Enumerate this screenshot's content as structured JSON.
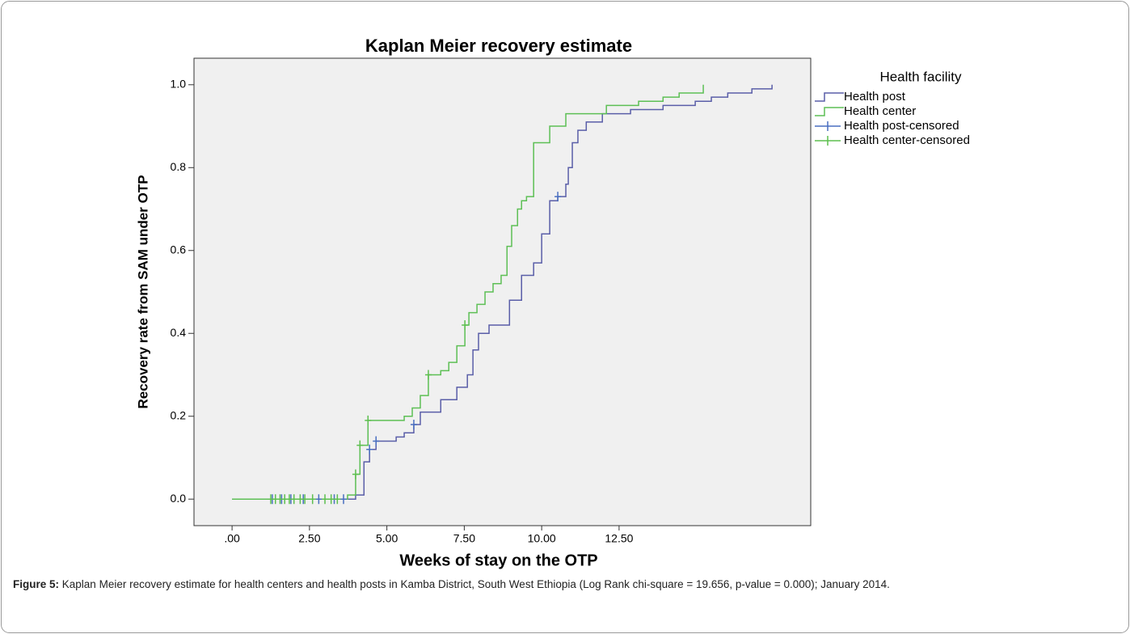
{
  "chart_data": {
    "type": "line",
    "step": "post",
    "title": "Kaplan Meier recovery estimate",
    "x_label": "Weeks of stay on the OTP",
    "y_label": "Recovery rate from SAM under OTP",
    "legend_title": "Health facility",
    "background": "#f0f0f0",
    "xlim": [
      -1.23,
      18.69
    ],
    "ylim": [
      -0.064,
      1.064
    ],
    "xticks": [
      {
        "value": 0,
        "label": ".00"
      },
      {
        "value": 2.5,
        "label": "2.50"
      },
      {
        "value": 5,
        "label": "5.00"
      },
      {
        "value": 7.5,
        "label": "7.50"
      },
      {
        "value": 10,
        "label": "10.00"
      },
      {
        "value": 12.5,
        "label": "12.50"
      }
    ],
    "yticks": [
      {
        "value": 0,
        "label": "0.0"
      },
      {
        "value": 0.2,
        "label": "0.2"
      },
      {
        "value": 0.4,
        "label": "0.4"
      },
      {
        "value": 0.6,
        "label": "0.6"
      },
      {
        "value": 0.8,
        "label": "0.8"
      },
      {
        "value": 1,
        "label": "1.0"
      }
    ],
    "series": [
      {
        "name": "Health post",
        "color": "#5a5ea8",
        "marker": "step",
        "x": [
          0,
          3.99,
          4.26,
          4.44,
          4.65,
          5.3,
          5.56,
          5.87,
          6.08,
          6.74,
          7.26,
          7.6,
          7.78,
          7.96,
          8.3,
          8.96,
          9.35,
          9.74,
          10.0,
          10.26,
          10.52,
          10.78,
          10.86,
          10.99,
          11.17,
          11.44,
          11.96,
          12.87,
          13.92,
          14.96,
          15.48,
          16.01,
          16.79,
          17.44
        ],
        "values": [
          0,
          0.01,
          0.09,
          0.12,
          0.14,
          0.15,
          0.16,
          0.18,
          0.21,
          0.24,
          0.27,
          0.3,
          0.36,
          0.4,
          0.42,
          0.48,
          0.54,
          0.57,
          0.64,
          0.72,
          0.73,
          0.76,
          0.8,
          0.86,
          0.89,
          0.91,
          0.93,
          0.94,
          0.95,
          0.96,
          0.97,
          0.98,
          0.99,
          1.0
        ]
      },
      {
        "name": "Health center",
        "color": "#5dbf55",
        "marker": "step",
        "x": [
          0,
          3.73,
          3.99,
          4.13,
          4.39,
          5.56,
          5.82,
          6.08,
          6.34,
          6.74,
          7.0,
          7.26,
          7.52,
          7.65,
          7.91,
          8.17,
          8.43,
          8.69,
          8.88,
          9.03,
          9.22,
          9.35,
          9.51,
          9.74,
          10.26,
          10.78,
          12.09,
          13.13,
          13.92,
          14.44,
          15.22
        ],
        "values": [
          0,
          0.01,
          0.06,
          0.13,
          0.19,
          0.2,
          0.22,
          0.25,
          0.3,
          0.31,
          0.33,
          0.37,
          0.42,
          0.45,
          0.47,
          0.5,
          0.52,
          0.54,
          0.61,
          0.66,
          0.7,
          0.72,
          0.73,
          0.86,
          0.9,
          0.93,
          0.95,
          0.96,
          0.97,
          0.98,
          1.0
        ]
      },
      {
        "name": "Health post-censored",
        "color": "#4a6fc0",
        "marker": "plus",
        "x": [
          1.3,
          1.6,
          1.9,
          2.3,
          2.8,
          3.3,
          3.6,
          4.44,
          4.65,
          5.87,
          10.52
        ],
        "values": [
          0,
          0,
          0,
          0,
          0,
          0,
          0,
          0.12,
          0.14,
          0.18,
          0.73
        ]
      },
      {
        "name": "Health center-censored",
        "color": "#5dbf4f",
        "marker": "plus",
        "x": [
          1.25,
          1.4,
          1.55,
          1.7,
          1.85,
          2.0,
          2.2,
          2.35,
          2.6,
          3.0,
          3.2,
          3.4,
          3.99,
          4.13,
          4.39,
          6.34,
          7.52
        ],
        "values": [
          0,
          0,
          0,
          0,
          0,
          0,
          0,
          0,
          0,
          0,
          0,
          0,
          0.06,
          0.13,
          0.19,
          0.3,
          0.42
        ]
      }
    ]
  },
  "caption": {
    "label": "Figure 5:",
    "text": "Kaplan Meier recovery estimate for health centers and health posts in Kamba District, South West Ethiopia (Log Rank chi-square = 19.656, p-value = 0.000); January 2014."
  }
}
